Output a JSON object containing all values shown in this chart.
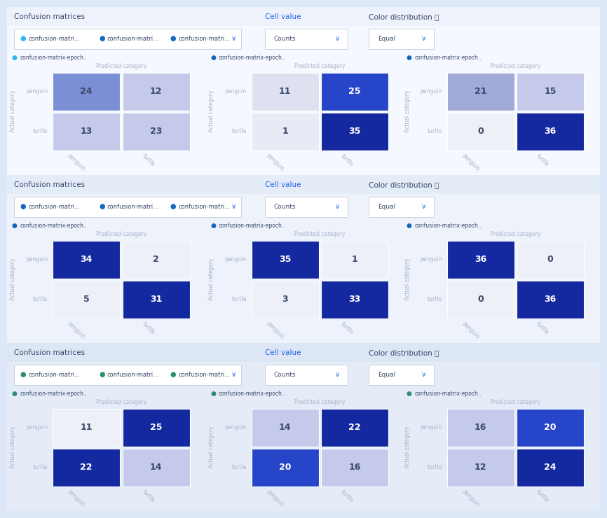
{
  "title_text": "Confusion matrices",
  "cell_value_text": "Cell value",
  "color_dist_text": "Color distribution ⓘ",
  "counts_text": "Counts",
  "equal_text": "Equal",
  "legend_text": "confusion-matri...",
  "categories": [
    "penguin",
    "turtle"
  ],
  "rows": [
    {
      "dot_colors": [
        "#29b6f6",
        "#1565c0",
        "#1565c0"
      ],
      "bg_color": "#f5f8fe",
      "header_bg": "#eef2fb",
      "matrices": [
        [
          [
            24,
            12
          ],
          [
            13,
            23
          ]
        ],
        [
          [
            11,
            25
          ],
          [
            1,
            35
          ]
        ],
        [
          [
            21,
            15
          ],
          [
            0,
            36
          ]
        ]
      ],
      "cell_colors": [
        [
          [
            "#7b8fd4",
            "#c5caea"
          ],
          [
            "#c5caea",
            "#c5caea"
          ]
        ],
        [
          [
            "#dde1f0",
            "#2645c8"
          ],
          [
            "#e8eaf5",
            "#1428a0"
          ]
        ],
        [
          [
            "#a0aad8",
            "#c5caea"
          ],
          [
            "#eef0f8",
            "#1428a0"
          ]
        ]
      ]
    },
    {
      "dot_colors": [
        "#1565c0",
        "#1565c0",
        "#1565c0"
      ],
      "bg_color": "#edf2fb",
      "header_bg": "#e4ecf8",
      "matrices": [
        [
          [
            34,
            2
          ],
          [
            5,
            31
          ]
        ],
        [
          [
            35,
            1
          ],
          [
            3,
            33
          ]
        ],
        [
          [
            36,
            0
          ],
          [
            0,
            36
          ]
        ]
      ],
      "cell_colors": [
        [
          [
            "#1428a0",
            "#eef0f8"
          ],
          [
            "#eef0f8",
            "#1428a0"
          ]
        ],
        [
          [
            "#1428a0",
            "#eef0f8"
          ],
          [
            "#eef0f8",
            "#1428a0"
          ]
        ],
        [
          [
            "#1428a0",
            "#eef0f8"
          ],
          [
            "#eef0f8",
            "#1428a0"
          ]
        ]
      ]
    },
    {
      "dot_colors": [
        "#2e8b70",
        "#2e8b70",
        "#2e8b70"
      ],
      "bg_color": "#e5ecf8",
      "header_bg": "#dce6f4",
      "matrices": [
        [
          [
            11,
            25
          ],
          [
            22,
            14
          ]
        ],
        [
          [
            14,
            22
          ],
          [
            20,
            16
          ]
        ],
        [
          [
            16,
            20
          ],
          [
            12,
            24
          ]
        ]
      ],
      "cell_colors": [
        [
          [
            "#eef0f8",
            "#1428a0"
          ],
          [
            "#1428a0",
            "#c5caea"
          ]
        ],
        [
          [
            "#c5caea",
            "#1428a0"
          ],
          [
            "#2645c8",
            "#c5caea"
          ]
        ],
        [
          [
            "#c5caea",
            "#2645c8"
          ],
          [
            "#c5caea",
            "#1428a0"
          ]
        ]
      ]
    }
  ]
}
